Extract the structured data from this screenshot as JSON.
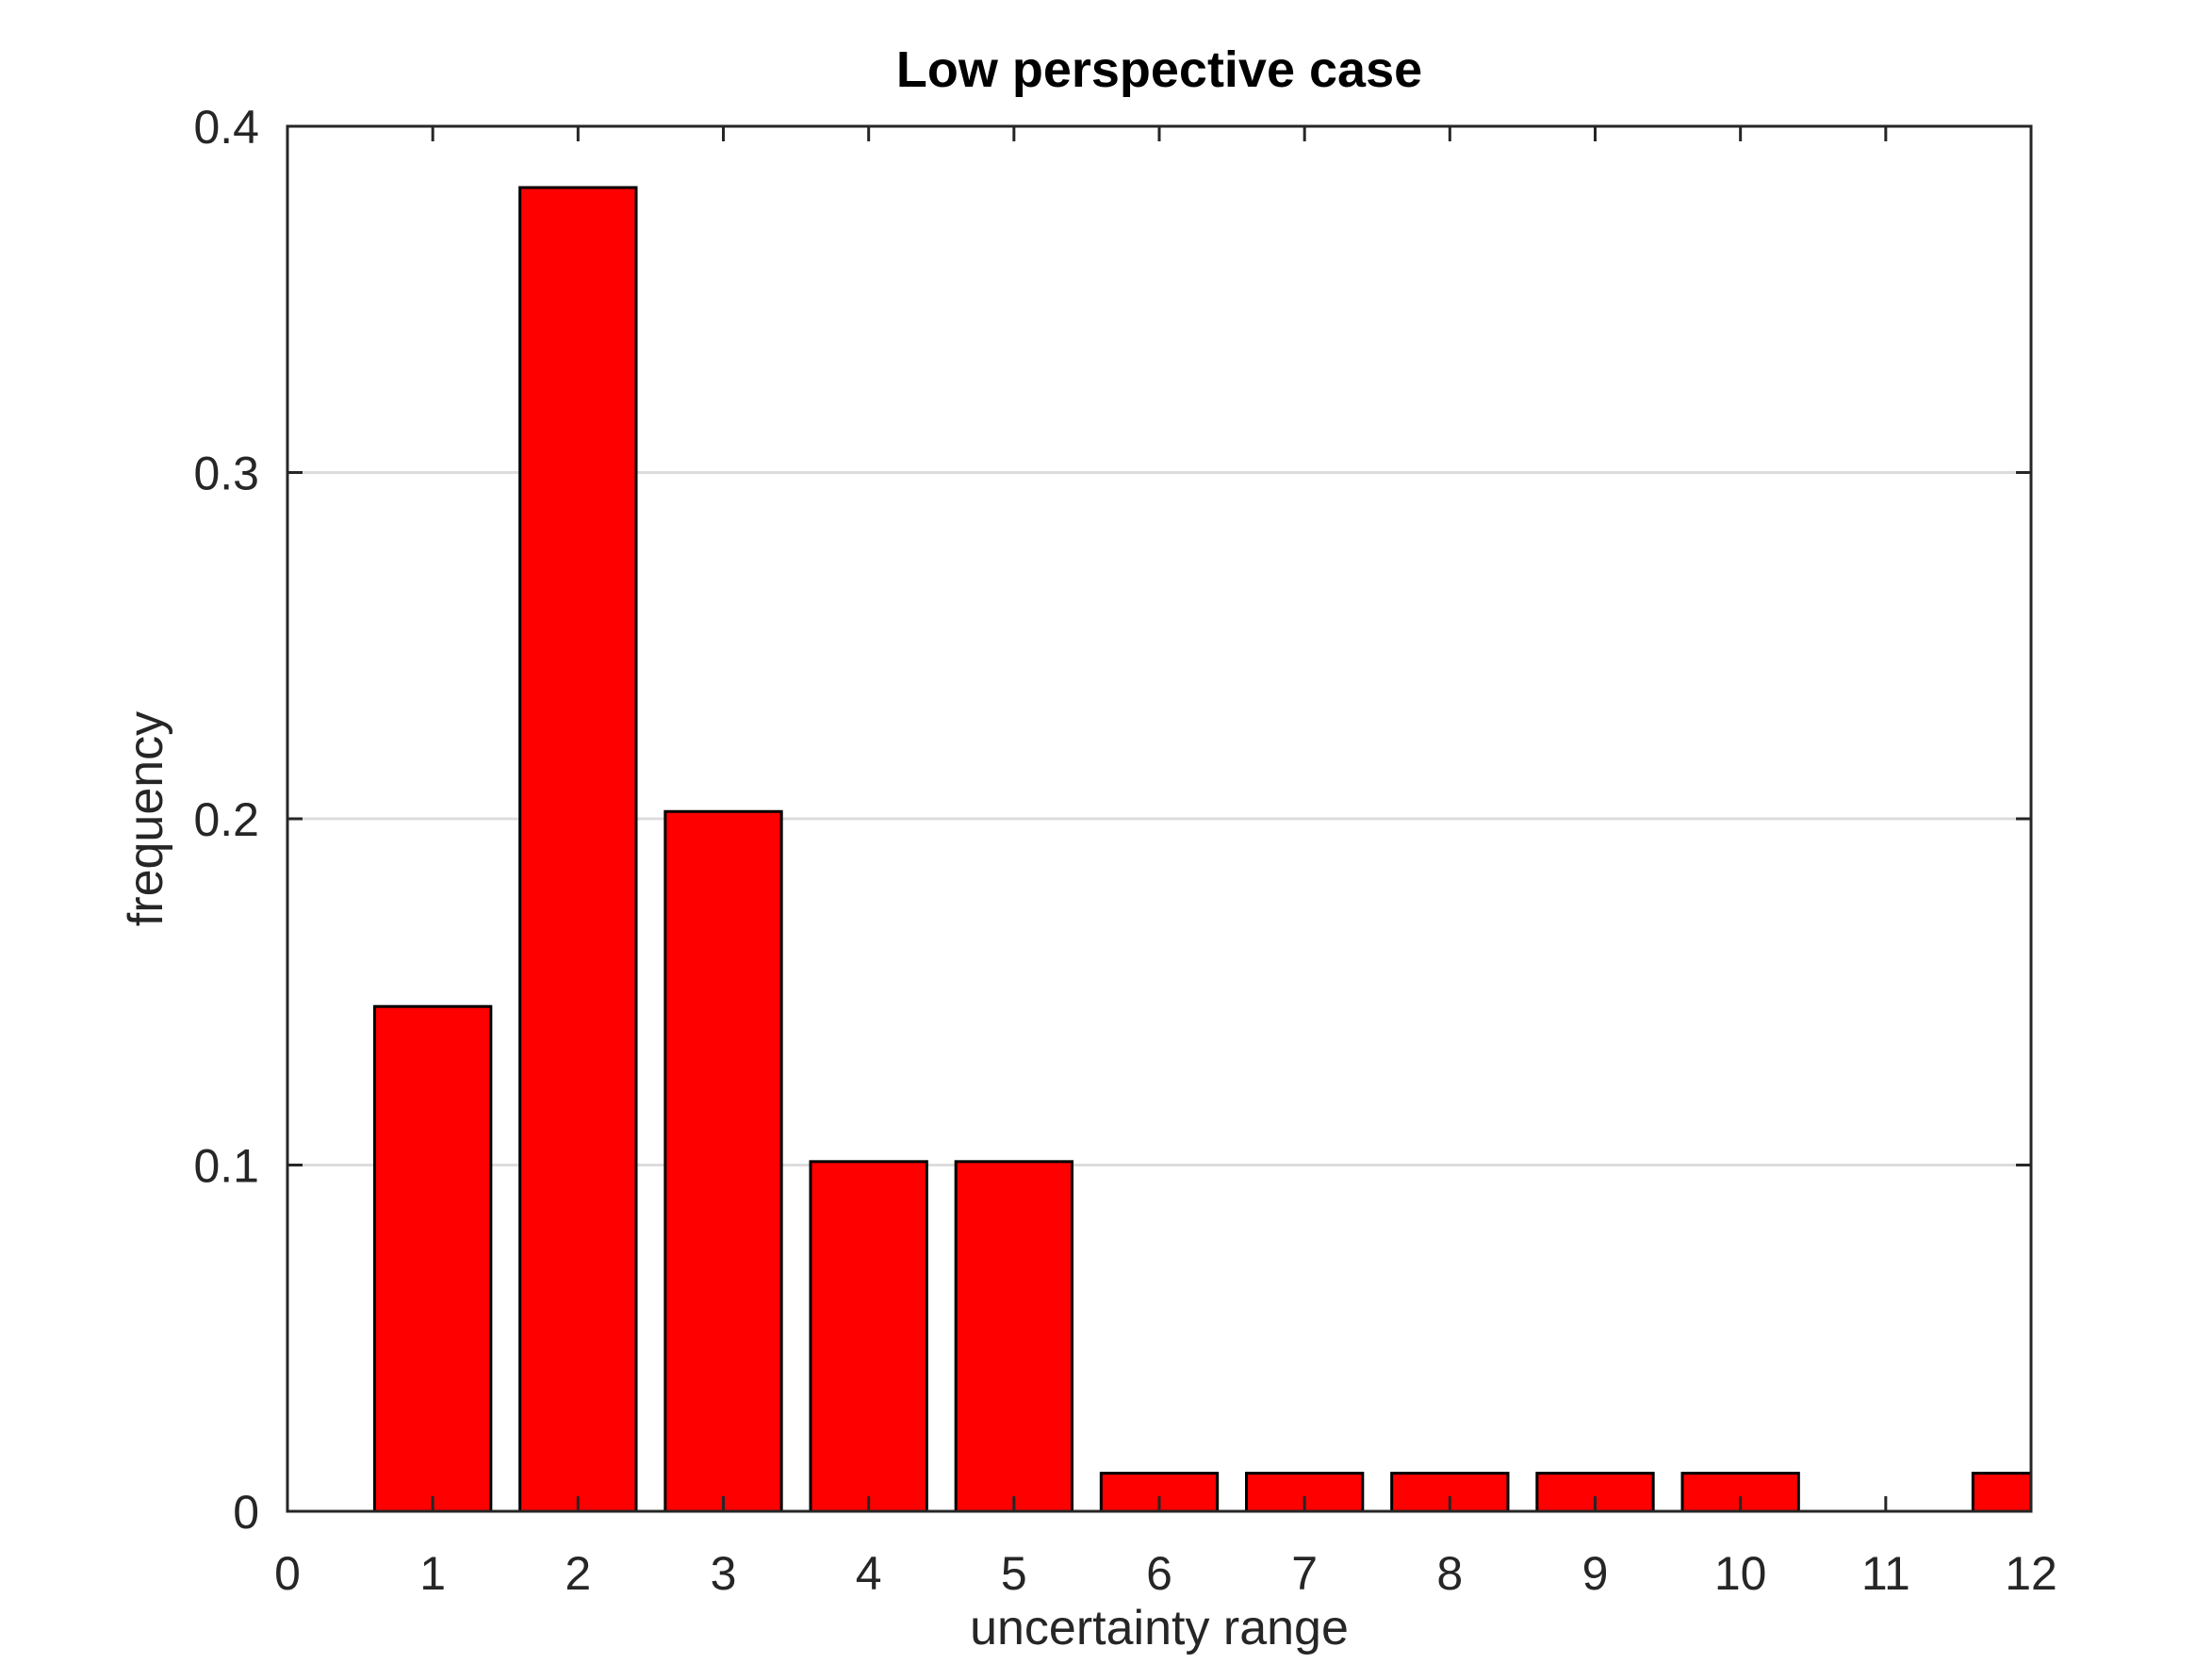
{
  "chart_data": {
    "type": "bar",
    "title": "Low perspective case",
    "xlabel": "uncertainty range",
    "ylabel": "frequency",
    "x": [
      1,
      2,
      3,
      4,
      5,
      6,
      7,
      8,
      9,
      10,
      11,
      12
    ],
    "values": [
      0.1458,
      0.3823,
      0.2021,
      0.101,
      0.101,
      0.011,
      0.011,
      0.011,
      0.011,
      0.011,
      0,
      0.011
    ],
    "xlim": [
      0,
      12
    ],
    "ylim": [
      0,
      0.4
    ],
    "xticks": [
      0,
      1,
      2,
      3,
      4,
      5,
      6,
      7,
      8,
      9,
      10,
      11,
      12
    ],
    "xtick_labels": [
      "0",
      "1",
      "2",
      "3",
      "4",
      "5",
      "6",
      "7",
      "8",
      "9",
      "10",
      "11",
      "12"
    ],
    "yticks": [
      0,
      0.1,
      0.2,
      0.3,
      0.4
    ],
    "ytick_labels": [
      "0",
      "0.1",
      "0.2",
      "0.3",
      "0.4"
    ],
    "grid": "horizontal",
    "bar_color": "#ff0000",
    "bar_edge_color": "#000000",
    "grid_color": "#dcdcdc"
  }
}
